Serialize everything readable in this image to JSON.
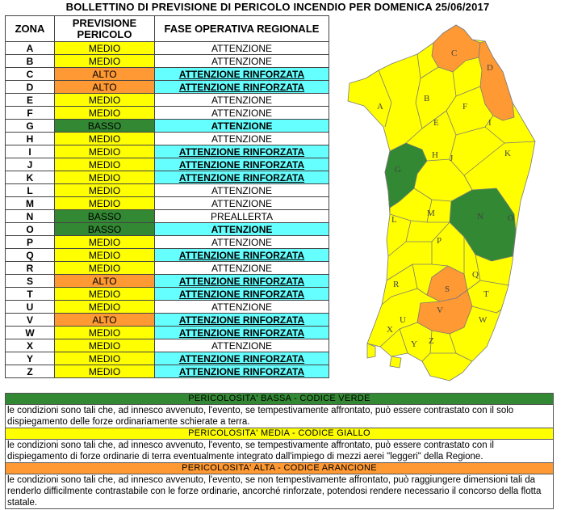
{
  "title": "BOLLETTINO DI PREVISIONE DI PERICOLO INCENDIO PER DOMENICA 25/06/2017",
  "headers": {
    "zona": "ZONA",
    "previsione": "PREVISIONE PERICOLO",
    "fase": "FASE OPERATIVA REGIONALE"
  },
  "colors": {
    "medio": "#ffff00",
    "alto": "#ff9933",
    "basso": "#338833",
    "cyan": "#66ffff",
    "border": "#444444"
  },
  "rows": [
    {
      "zona": "A",
      "previsione": "MEDIO",
      "fase": "ATTENZIONE"
    },
    {
      "zona": "B",
      "previsione": "MEDIO",
      "fase": "ATTENZIONE"
    },
    {
      "zona": "C",
      "previsione": "ALTO",
      "fase": "ATTENZIONE RINFORZATA"
    },
    {
      "zona": "D",
      "previsione": "ALTO",
      "fase": "ATTENZIONE RINFORZATA"
    },
    {
      "zona": "E",
      "previsione": "MEDIO",
      "fase": "ATTENZIONE"
    },
    {
      "zona": "F",
      "previsione": "MEDIO",
      "fase": "ATTENZIONE"
    },
    {
      "zona": "G",
      "previsione": "BASSO",
      "fase": "ATTENZIONE"
    },
    {
      "zona": "H",
      "previsione": "MEDIO",
      "fase": "ATTENZIONE"
    },
    {
      "zona": "I",
      "previsione": "MEDIO",
      "fase": "ATTENZIONE RINFORZATA"
    },
    {
      "zona": "J",
      "previsione": "MEDIO",
      "fase": "ATTENZIONE RINFORZATA"
    },
    {
      "zona": "K",
      "previsione": "MEDIO",
      "fase": "ATTENZIONE RINFORZATA"
    },
    {
      "zona": "L",
      "previsione": "MEDIO",
      "fase": "ATTENZIONE"
    },
    {
      "zona": "M",
      "previsione": "MEDIO",
      "fase": "ATTENZIONE"
    },
    {
      "zona": "N",
      "previsione": "BASSO",
      "fase": "PREALLERTA"
    },
    {
      "zona": "O",
      "previsione": "BASSO",
      "fase": "ATTENZIONE"
    },
    {
      "zona": "P",
      "previsione": "MEDIO",
      "fase": "ATTENZIONE"
    },
    {
      "zona": "Q",
      "previsione": "MEDIO",
      "fase": "ATTENZIONE RINFORZATA"
    },
    {
      "zona": "R",
      "previsione": "MEDIO",
      "fase": "ATTENZIONE"
    },
    {
      "zona": "S",
      "previsione": "ALTO",
      "fase": "ATTENZIONE RINFORZATA"
    },
    {
      "zona": "T",
      "previsione": "MEDIO",
      "fase": "ATTENZIONE RINFORZATA"
    },
    {
      "zona": "U",
      "previsione": "MEDIO",
      "fase": "ATTENZIONE"
    },
    {
      "zona": "V",
      "previsione": "ALTO",
      "fase": "ATTENZIONE RINFORZATA"
    },
    {
      "zona": "W",
      "previsione": "MEDIO",
      "fase": "ATTENZIONE RINFORZATA"
    },
    {
      "zona": "X",
      "previsione": "MEDIO",
      "fase": "ATTENZIONE"
    },
    {
      "zona": "Y",
      "previsione": "MEDIO",
      "fase": "ATTENZIONE RINFORZATA"
    },
    {
      "zona": "Z",
      "previsione": "MEDIO",
      "fase": "ATTENZIONE RINFORZATA"
    }
  ],
  "legend": {
    "bassa": {
      "title": "PERICOLOSITA' BASSA - CODICE VERDE",
      "text": "le condizioni sono tali che, ad innesco avvenuto, l'evento, se tempestivamente affrontato, può essere contrastato con il solo dispiegamento delle forze ordinariamente schierate a terra."
    },
    "media": {
      "title": "PERICOLOSITA' MEDIA - CODICE GIALLO",
      "text": "le condizioni sono tali che, ad innesco avvenuto, l'evento, se tempestivamente affrontato, può essere contrastato con il dispiegamento di forze ordinarie di terra eventualmente integrato dall'impiego di mezzi aerei \"leggeri\" della Regione."
    },
    "alta": {
      "title": "PERICOLOSITA' ALTA - CODICE ARANCIONE",
      "text": "le condizioni sono tali che, ad innesco avvenuto, l'evento, se non tempestivamente affrontato, può raggiungere dimensioni tali da renderlo difficilmente contrastabile con le forze ordinarie, ancorché rinforzate, potendosi rendere necessario il concorso della flotta statale."
    }
  }
}
